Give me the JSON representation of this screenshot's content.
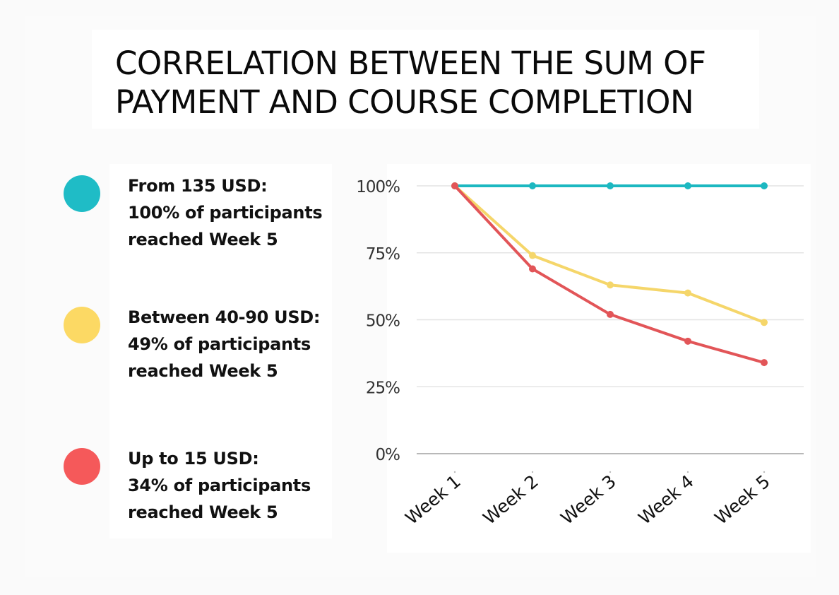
{
  "title": {
    "line1": "CORRELATION BETWEEN THE SUM OF",
    "line2": "PAYMENT AND COURSE COMPLETION"
  },
  "legend": [
    {
      "color": "#1fbcc6",
      "line1": "From 135 USD:",
      "line2": "100% of participants",
      "line3": "reached Week 5"
    },
    {
      "color": "#fcd964",
      "line1": "Between 40-90 USD:",
      "line2": "49% of participants",
      "line3": "reached Week 5"
    },
    {
      "color": "#f5595a",
      "line1": "Up to 15 USD:",
      "line2": "34% of participants",
      "line3": "reached Week 5"
    }
  ],
  "chart_data": {
    "type": "line",
    "title": "CORRELATION BETWEEN THE SUM OF PAYMENT AND COURSE COMPLETION",
    "xlabel": "",
    "ylabel": "",
    "categories": [
      "Week 1",
      "Week 2",
      "Week 3",
      "Week 4",
      "Week 5"
    ],
    "yticks": [
      "0%",
      "25%",
      "50%",
      "75%",
      "100%"
    ],
    "ylim": [
      0,
      100
    ],
    "grid": true,
    "legend_position": "left",
    "series": [
      {
        "name": "From 135 USD",
        "color": "#1cb8c1",
        "values": [
          100,
          100,
          100,
          100,
          100
        ]
      },
      {
        "name": "Between 40-90 USD",
        "color": "#f5d66a",
        "values": [
          100,
          74,
          63,
          60,
          49
        ]
      },
      {
        "name": "Up to 15 USD",
        "color": "#e25558",
        "values": [
          100,
          69,
          52,
          42,
          34
        ]
      }
    ]
  }
}
